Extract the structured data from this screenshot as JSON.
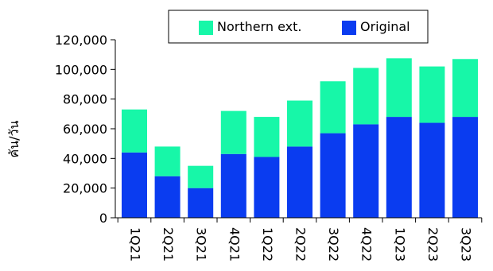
{
  "chart_data": {
    "type": "bar",
    "stacked": true,
    "ylabel": "คัน/วัน",
    "ylim": [
      0,
      120000
    ],
    "yticks": [
      "0",
      "20,000",
      "40,000",
      "60,000",
      "80,000",
      "100,000",
      "120,000"
    ],
    "ytick_values": [
      0,
      20000,
      40000,
      60000,
      80000,
      100000,
      120000
    ],
    "categories": [
      "1Q21",
      "2Q21",
      "3Q21",
      "4Q21",
      "1Q22",
      "2Q22",
      "3Q22",
      "4Q22",
      "1Q23",
      "2Q23",
      "3Q23"
    ],
    "series": [
      {
        "name": "Original",
        "color": "#0a3cf0",
        "values": [
          44000,
          28000,
          20000,
          43000,
          41000,
          48000,
          57000,
          63000,
          68000,
          64000,
          68000
        ]
      },
      {
        "name": "Northern ext.",
        "color": "#17f7a8",
        "values": [
          29000,
          20000,
          15000,
          29000,
          27000,
          31000,
          35000,
          38000,
          39500,
          38000,
          39000
        ]
      }
    ],
    "legend": {
      "position": "top",
      "order": [
        "Northern ext.",
        "Original"
      ]
    },
    "grid": false
  }
}
